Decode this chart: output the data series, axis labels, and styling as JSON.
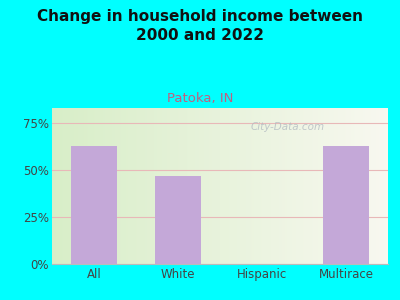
{
  "title": "Change in household income between\n2000 and 2022",
  "subtitle": "Patoka, IN",
  "categories": [
    "All",
    "White",
    "Hispanic",
    "Multirace"
  ],
  "values": [
    63,
    47,
    0,
    63
  ],
  "bar_color": "#c4a8d8",
  "background_color": "#00ffff",
  "plot_bg_left": "#d8eec8",
  "plot_bg_right": "#f8f8f0",
  "title_fontsize": 11,
  "subtitle_fontsize": 9.5,
  "subtitle_color": "#c06080",
  "tick_label_color": "#444444",
  "ylabel_ticks": [
    0,
    25,
    50,
    75
  ],
  "ylabel_tick_labels": [
    "0%",
    "25%",
    "50%",
    "75%"
  ],
  "ylim": [
    0,
    83
  ],
  "grid_color": "#e8b8b8",
  "watermark": "City-Data.com"
}
